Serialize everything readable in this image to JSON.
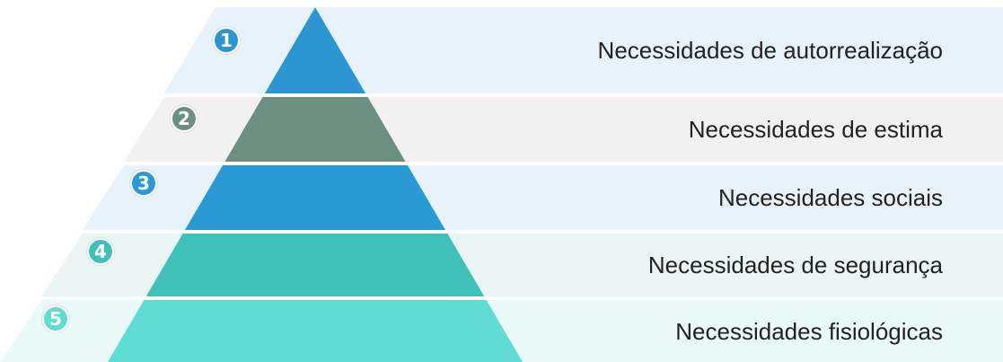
{
  "levels": [
    {
      "number": "1",
      "label": "Necessidades de autorrealização",
      "band_color": "#e8f2fa",
      "tier_color": "#2b96d1",
      "badge_color": "#2b96d1"
    },
    {
      "number": "2",
      "label": "Necessidades de estima",
      "band_color": "#f0f1f0",
      "tier_color": "#6b8f80",
      "badge_color": "#6b8f80"
    },
    {
      "number": "3",
      "label": "Necessidades sociais",
      "band_color": "#e8f2fa",
      "tier_color": "#2a9ad5",
      "badge_color": "#2a9ad5"
    },
    {
      "number": "4",
      "label": "Necessidades de segurança",
      "band_color": "#eaf5f4",
      "tier_color": "#3fc1ba",
      "badge_color": "#3fc1ba"
    },
    {
      "number": "5",
      "label": "Necessidades fisiológicas",
      "band_color": "#eafaf8",
      "tier_color": "#5fdcd4",
      "badge_color": "#5fdcd4"
    }
  ]
}
